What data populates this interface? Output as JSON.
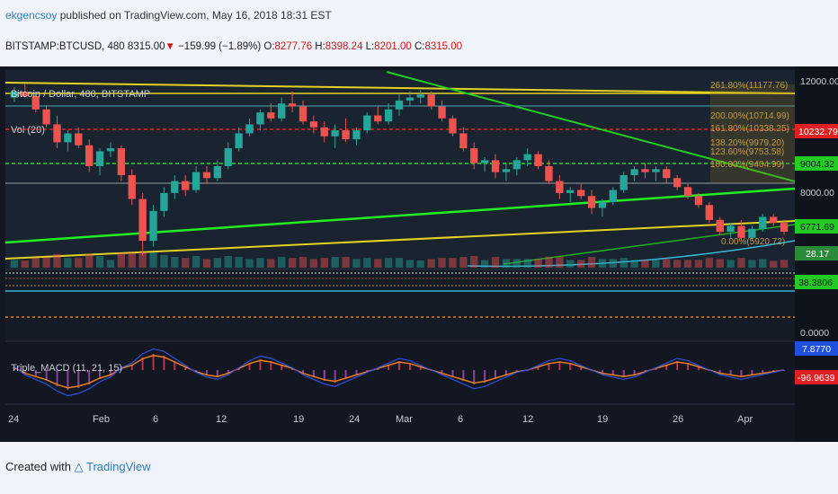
{
  "header": {
    "user": "ekgencsoy",
    "published": " published on TradingView.com, May 16, 2018 18:31 EST"
  },
  "ticker": {
    "symbol": "BITSTAMP:BTCUSD, 480",
    "last": "8315.00",
    "change_arrow": "▼",
    "change": "−159.99 (−1.89%)",
    "o_label": "O:",
    "o": "8277.76",
    "h_label": "H:",
    "h": "8398.24",
    "l_label": "L:",
    "l": "8201.00",
    "c_label": "C:",
    "c": "8315.00"
  },
  "chart_data": {
    "type": "candlestick",
    "title": "Bitcoin / Dollar, 480, BITSTAMP",
    "volume_label": "Vol (20)",
    "macd_label": "Triple_MACD (11, 21, 15)",
    "x_tick_labels": [
      "24",
      "Feb",
      "6",
      "12",
      "19",
      "24",
      "Mar",
      "6",
      "12",
      "19",
      "26",
      "Apr"
    ],
    "price_axis_labels": [
      "12000.00",
      "10232.79",
      "9004.32",
      "8000.00",
      "6771.69",
      "28.17",
      "38.3806",
      "0.0000",
      "7.8770",
      "-96.9639"
    ],
    "fib_labels": [
      "261.80%(11177.76)",
      "200.00%(10714.99)",
      "161.80%(10338.25)",
      "138.20%(9979.20)",
      "123.60%(9753.58)",
      "100.00%(9404.99)",
      "0.00%(5920.72)"
    ],
    "ylim": [
      5900,
      12100
    ],
    "series_colors": {
      "up": "#26a69a",
      "down": "#ef5350"
    },
    "line_colors": {
      "yellow": "#e3d224",
      "green": "#22cc22",
      "red_dash": "#e02020",
      "green_dash": "#22dd22",
      "cyan": "#35b8d8"
    },
    "candles": [
      [
        11300,
        11650,
        11150,
        11500
      ],
      [
        11500,
        11750,
        11300,
        11350
      ],
      [
        11350,
        11500,
        10800,
        10900
      ],
      [
        10900,
        11050,
        10300,
        10400
      ],
      [
        10400,
        10700,
        9600,
        9800
      ],
      [
        9800,
        10200,
        9500,
        10100
      ],
      [
        10100,
        10300,
        9600,
        9700
      ],
      [
        9700,
        9900,
        8800,
        9000
      ],
      [
        9000,
        9600,
        8700,
        9500
      ],
      [
        9500,
        9800,
        9300,
        9600
      ],
      [
        9600,
        9700,
        8500,
        8700
      ],
      [
        8700,
        8900,
        7700,
        7900
      ],
      [
        7900,
        8100,
        6000,
        6500
      ],
      [
        6500,
        7700,
        6300,
        7500
      ],
      [
        7500,
        8300,
        7300,
        8100
      ],
      [
        8100,
        8700,
        7900,
        8500
      ],
      [
        8500,
        8700,
        8000,
        8200
      ],
      [
        8200,
        9000,
        8100,
        8800
      ],
      [
        8800,
        9000,
        8400,
        8600
      ],
      [
        8600,
        9200,
        8500,
        9000
      ],
      [
        9000,
        9800,
        8900,
        9600
      ],
      [
        9600,
        10300,
        9500,
        10100
      ],
      [
        10100,
        10600,
        10000,
        10400
      ],
      [
        10400,
        10900,
        10200,
        10800
      ],
      [
        10800,
        11100,
        10500,
        10600
      ],
      [
        10600,
        11300,
        10500,
        11100
      ],
      [
        11100,
        11500,
        10800,
        11000
      ],
      [
        11000,
        11200,
        10400,
        10500
      ],
      [
        10500,
        10700,
        10100,
        10300
      ],
      [
        10300,
        10500,
        9800,
        10000
      ],
      [
        10000,
        10400,
        9600,
        10200
      ],
      [
        10200,
        10600,
        9800,
        9900
      ],
      [
        9900,
        10300,
        9700,
        10200
      ],
      [
        10200,
        10800,
        10100,
        10700
      ],
      [
        10700,
        11000,
        10400,
        10500
      ],
      [
        10500,
        11100,
        10400,
        10900
      ],
      [
        10900,
        11400,
        10700,
        11200
      ],
      [
        11200,
        11500,
        11000,
        11300
      ],
      [
        11300,
        11550,
        11100,
        11400
      ],
      [
        11400,
        11500,
        10900,
        11000
      ],
      [
        11000,
        11200,
        10500,
        10600
      ],
      [
        10600,
        10700,
        10000,
        10100
      ],
      [
        10100,
        10300,
        9500,
        9600
      ],
      [
        9600,
        9800,
        8900,
        9100
      ],
      [
        9100,
        9300,
        8800,
        9200
      ],
      [
        9200,
        9400,
        8600,
        8800
      ],
      [
        8800,
        9100,
        8500,
        8900
      ],
      [
        8900,
        9300,
        8700,
        9200
      ],
      [
        9200,
        9600,
        9000,
        9400
      ],
      [
        9400,
        9500,
        8900,
        9000
      ],
      [
        9000,
        9200,
        8400,
        8500
      ],
      [
        8500,
        8700,
        7900,
        8100
      ],
      [
        8100,
        8300,
        7800,
        8200
      ],
      [
        8200,
        8400,
        7900,
        8000
      ],
      [
        8000,
        8200,
        7400,
        7600
      ],
      [
        7600,
        7900,
        7300,
        7800
      ],
      [
        7800,
        8300,
        7700,
        8200
      ],
      [
        8200,
        8800,
        8100,
        8700
      ],
      [
        8700,
        9000,
        8500,
        8900
      ],
      [
        8900,
        9100,
        8600,
        8800
      ],
      [
        8800,
        9000,
        8500,
        8900
      ],
      [
        8900,
        9000,
        8400,
        8600
      ],
      [
        8600,
        8700,
        8200,
        8300
      ],
      [
        8300,
        8400,
        7900,
        8000
      ],
      [
        8000,
        8100,
        7600,
        7700
      ],
      [
        7700,
        7800,
        7100,
        7200
      ],
      [
        7200,
        7300,
        6700,
        6800
      ],
      [
        6800,
        7100,
        6600,
        7000
      ],
      [
        7000,
        7200,
        6500,
        6600
      ],
      [
        6600,
        7000,
        6500,
        6900
      ],
      [
        6900,
        7400,
        6800,
        7300
      ],
      [
        7300,
        7400,
        7000,
        7100
      ],
      [
        7100,
        7200,
        6700,
        6800
      ]
    ],
    "macd_hist": [
      3,
      -4,
      -8,
      -12,
      -18,
      -22,
      -20,
      -16,
      -10,
      -6,
      2,
      6,
      14,
      18,
      16,
      10,
      4,
      -2,
      -6,
      -8,
      -4,
      2,
      8,
      12,
      10,
      6,
      2,
      -4,
      -8,
      -12,
      -14,
      -10,
      -6,
      -2,
      2,
      6,
      10,
      8,
      4,
      0,
      -4,
      -8,
      -12,
      -16,
      -14,
      -10,
      -6,
      -2,
      0,
      4,
      8,
      10,
      8,
      4,
      0,
      -4,
      -6,
      -8,
      -6,
      -2,
      2,
      6,
      10,
      8,
      4,
      0,
      -4,
      -6,
      -8,
      -6,
      -4,
      -2,
      0
    ]
  },
  "footer": {
    "created": "Created with",
    "brand": "TradingView"
  }
}
